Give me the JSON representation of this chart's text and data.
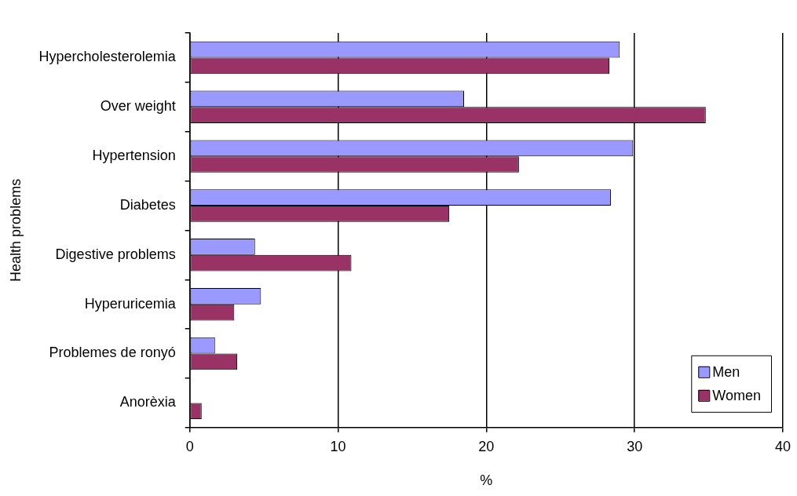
{
  "chart_data": {
    "type": "bar",
    "orientation": "horizontal",
    "xlabel": "%",
    "ylabel": "Health problems",
    "categories": [
      "Hypercholesterolemia",
      "Over weight",
      "Hypertension",
      "Diabetes",
      "Digestive problems",
      "Hyperuricemia",
      "Problemes de ronyó",
      "Anorèxia"
    ],
    "series": [
      {
        "name": "Men",
        "color": "#9999ff",
        "values": [
          29.0,
          18.5,
          29.9,
          28.4,
          4.4,
          4.8,
          1.7,
          0
        ]
      },
      {
        "name": "Women",
        "color": "#993366",
        "values": [
          28.3,
          34.8,
          22.2,
          17.5,
          10.9,
          3.0,
          3.2,
          0.8
        ]
      }
    ],
    "xlim": [
      0,
      40
    ],
    "xticks": [
      0,
      10,
      20,
      30,
      40
    ],
    "grid": "x",
    "legend": "bottom right"
  }
}
